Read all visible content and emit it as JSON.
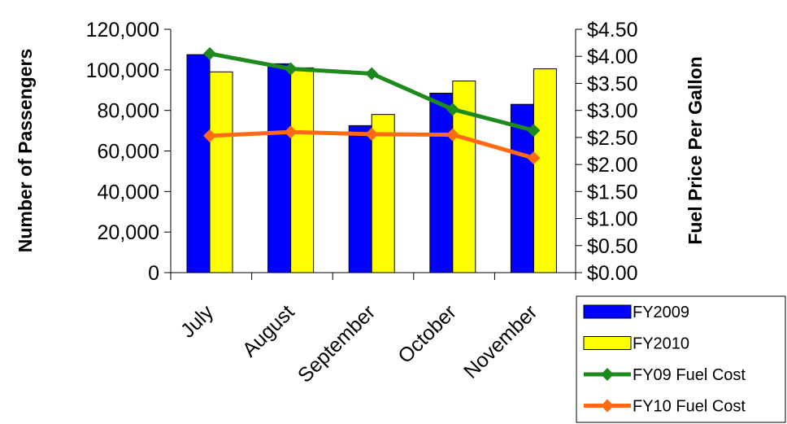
{
  "chart_data": {
    "type": "bar",
    "categories": [
      "July",
      "August",
      "September",
      "October",
      "November"
    ],
    "series": [
      {
        "name": "FY2009",
        "kind": "bar",
        "axis": "left",
        "color": "#0000FF",
        "values": [
          107500,
          103000,
          72500,
          88500,
          83000
        ]
      },
      {
        "name": "FY2010",
        "kind": "bar",
        "axis": "left",
        "color": "#FFFF00",
        "values": [
          99000,
          101000,
          78000,
          94500,
          100500
        ]
      },
      {
        "name": "FY09 Fuel Cost",
        "kind": "line",
        "axis": "right",
        "color": "#1E8A1E",
        "marker": "diamond",
        "values": [
          4.05,
          3.77,
          3.68,
          3.02,
          2.63
        ]
      },
      {
        "name": "FY10 Fuel Cost",
        "kind": "line",
        "axis": "right",
        "color": "#FF6A13",
        "marker": "diamond",
        "values": [
          2.53,
          2.6,
          2.56,
          2.55,
          2.12
        ]
      }
    ],
    "ylabel": "Number of Passengers",
    "y2label": "Fuel Price Per Gallon",
    "ylim": [
      0,
      120000
    ],
    "y2lim": [
      0,
      4.5
    ],
    "yticks": [
      "0",
      "20,000",
      "40,000",
      "60,000",
      "80,000",
      "100,000",
      "120,000"
    ],
    "y2ticks": [
      "$0.00",
      "$0.50",
      "$1.00",
      "$1.50",
      "$2.00",
      "$2.50",
      "$3.00",
      "$3.50",
      "$4.00",
      "$4.50"
    ],
    "grid": false,
    "legend_position": "bottom-right"
  }
}
